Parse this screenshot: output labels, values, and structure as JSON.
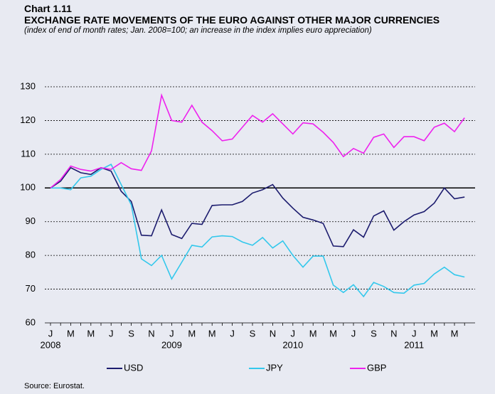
{
  "chart_data": {
    "type": "line",
    "label": "Chart 1.11",
    "title": "EXCHANGE RATE MOVEMENTS OF THE EURO AGAINST OTHER MAJOR CURRENCIES",
    "subtitle": "(index of end of month rates; Jan. 2008=100; an increase in the index implies euro appreciation)",
    "source": "Source: Eurostat.",
    "categories": [
      "J",
      null,
      "M",
      null,
      "M",
      null,
      "J",
      null,
      "S",
      null,
      "N",
      null,
      "J",
      null,
      "M",
      null,
      "M",
      null,
      "J",
      null,
      "S",
      null,
      "N",
      null,
      "J",
      null,
      "M",
      null,
      "M",
      null,
      "J",
      null,
      "S",
      null,
      "N",
      null,
      "J",
      null,
      "M",
      null,
      "M",
      null
    ],
    "years": [
      "2008",
      "2009",
      "2010",
      "2011"
    ],
    "series": [
      {
        "name": "USD",
        "color": "#1c1c6e",
        "values": [
          100,
          102,
          106,
          104.5,
          104,
          106,
          105,
          99,
          96,
          86,
          85.8,
          93.5,
          86.2,
          85,
          89.5,
          89.2,
          94.8,
          95,
          95,
          96,
          98.5,
          99.5,
          101,
          97,
          94,
          91.3,
          90.5,
          89.5,
          82.8,
          82.6,
          87.6,
          85.4,
          91.7,
          93.2,
          87.5,
          90,
          92,
          93,
          95.5,
          100,
          96.8,
          97.3
        ]
      },
      {
        "name": "JPY",
        "color": "#33c8ec",
        "values": [
          100,
          100,
          99.5,
          103,
          103.5,
          105.5,
          107,
          101,
          95,
          79,
          77,
          80,
          73,
          78,
          83,
          82.5,
          85.5,
          85.8,
          85.6,
          84,
          83,
          85.3,
          82.2,
          84.3,
          80,
          76.5,
          79.8,
          79.8,
          71.2,
          69,
          71.3,
          67.8,
          72,
          70.8,
          69,
          68.8,
          71.2,
          71.7,
          74.5,
          76.5,
          74.3,
          73.6
        ]
      },
      {
        "name": "GBP",
        "color": "#ee22ee",
        "values": [
          100,
          102.5,
          106.5,
          105.5,
          105,
          106,
          105.5,
          107.5,
          105.7,
          105.2,
          111,
          127.5,
          120,
          119.5,
          124.5,
          119.5,
          117,
          114,
          114.5,
          118,
          121.5,
          119.5,
          122,
          119,
          116,
          119.3,
          119,
          116.5,
          113.5,
          109.3,
          111.7,
          110.3,
          115,
          116,
          112,
          115.2,
          115.2,
          114,
          118,
          119.2,
          116.7,
          120.8
        ]
      }
    ],
    "ylim": [
      60,
      130
    ],
    "yticks": [
      60,
      70,
      80,
      90,
      100,
      110,
      120,
      130
    ],
    "baseline": 100,
    "grid": true,
    "legend": "bottom"
  }
}
